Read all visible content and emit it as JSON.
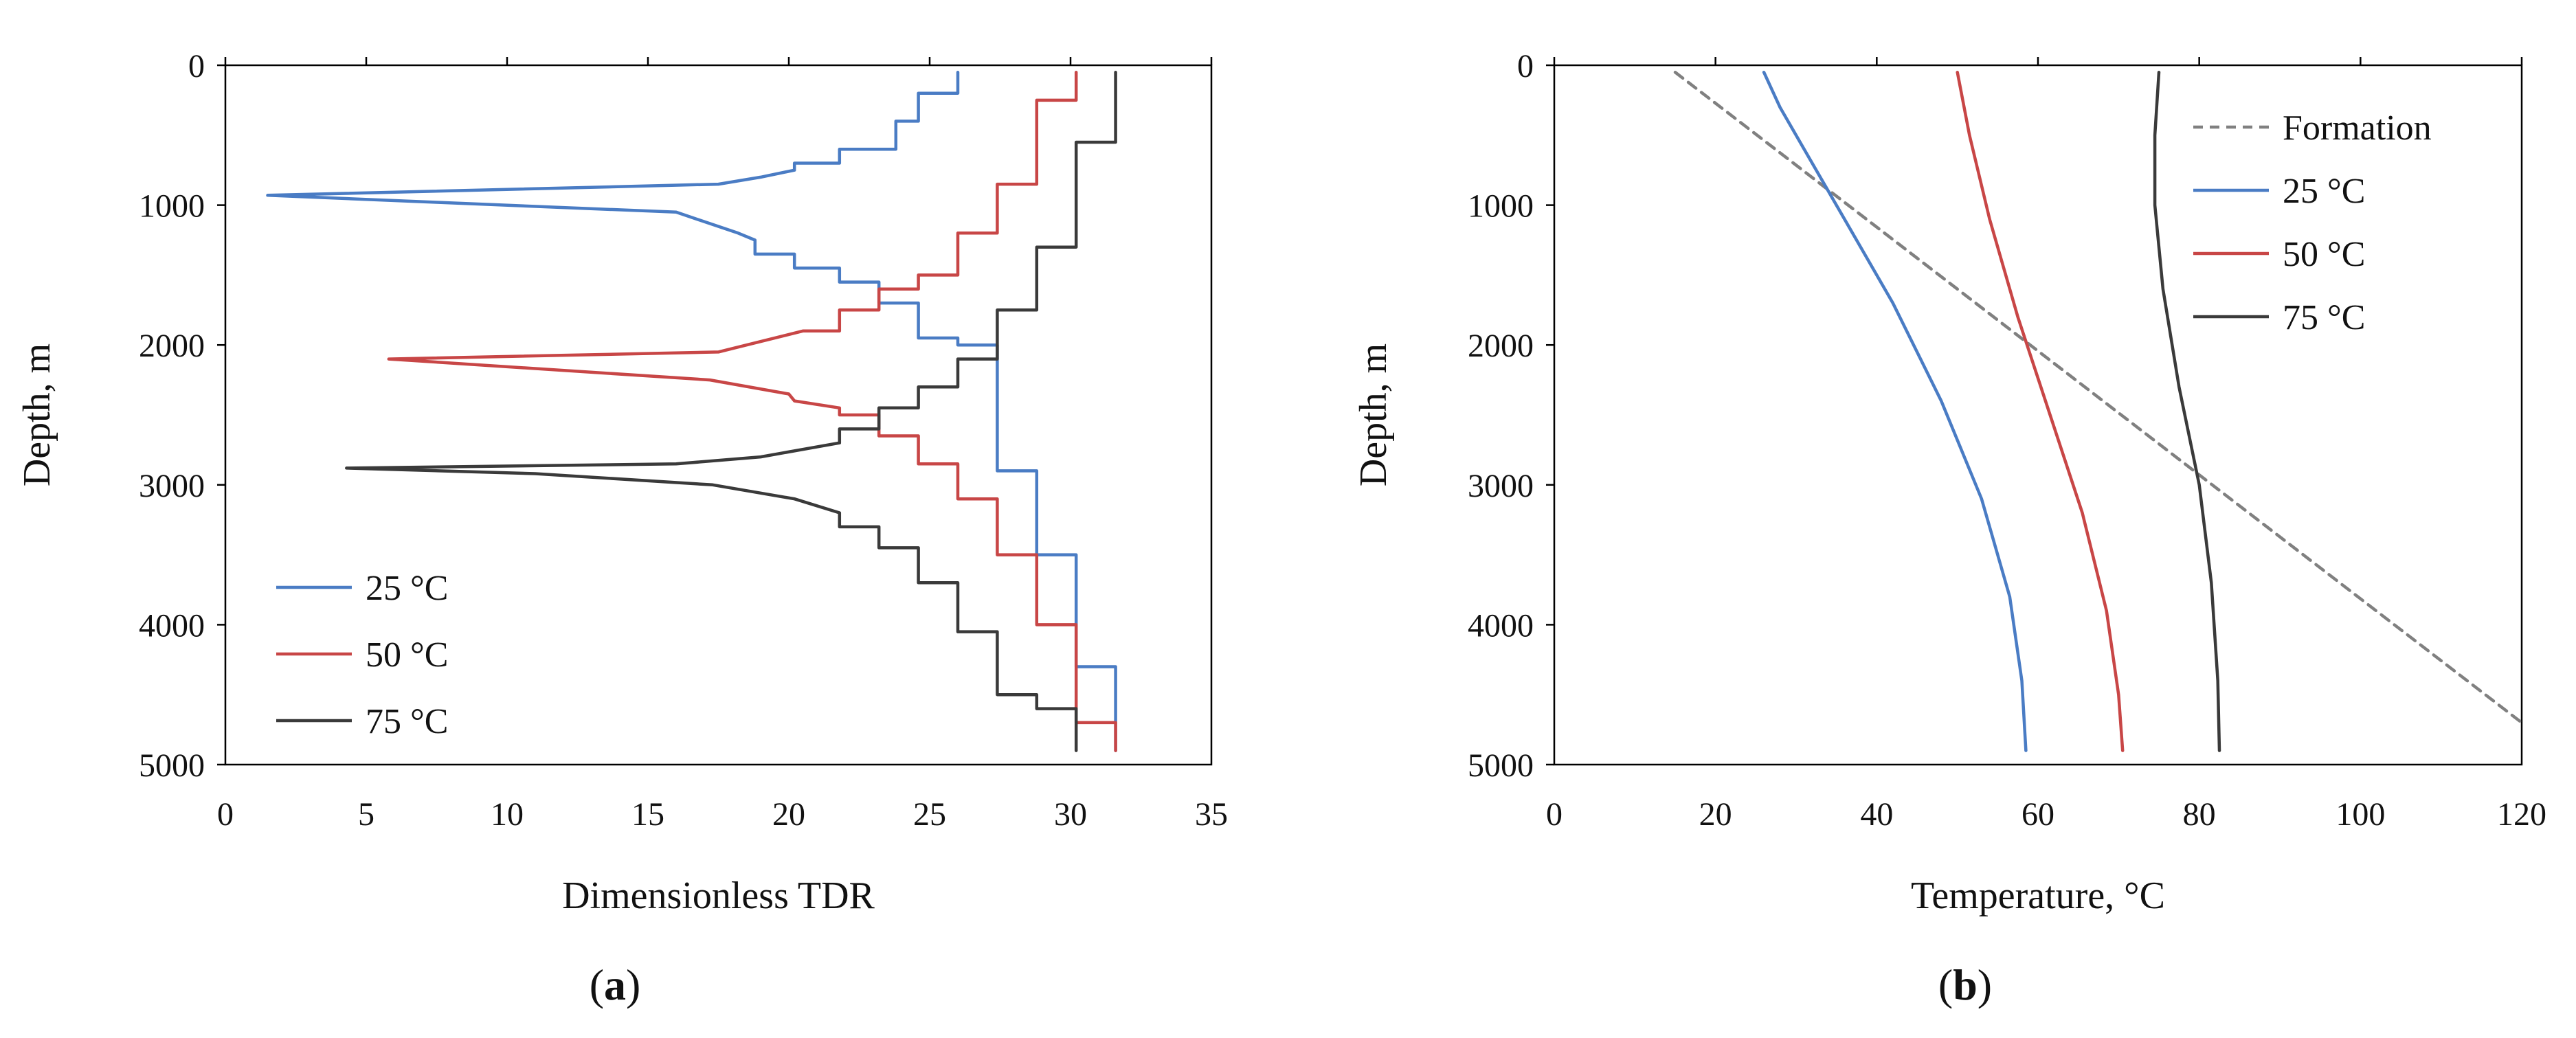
{
  "chart_data": [
    {
      "type": "line",
      "panel_label": {
        "open": "(",
        "letter": "a",
        "close": ")"
      },
      "xlabel": "Dimensionless TDR",
      "ylabel": "Depth, m",
      "xlim": [
        0,
        35
      ],
      "ylim": [
        0,
        5000
      ],
      "y_inverted": true,
      "x_axis_position": "top",
      "xticks": [
        0,
        5,
        10,
        15,
        20,
        25,
        30,
        35
      ],
      "yticks": [
        0,
        1000,
        2000,
        3000,
        4000,
        5000
      ],
      "legend_position": "bottom-left",
      "series": [
        {
          "name": "25  °C",
          "color": "#4a7cc4",
          "x": [
            26.0,
            26.0,
            24.6,
            24.6,
            23.8,
            23.8,
            21.8,
            21.8,
            20.2,
            20.2,
            19.0,
            17.5,
            1.5,
            7.5,
            16.0,
            18.2,
            18.8,
            18.8,
            20.2,
            20.2,
            21.8,
            21.8,
            23.2,
            23.2,
            24.6,
            24.6,
            26.0,
            26.0,
            27.4,
            27.4,
            28.8,
            28.8,
            30.2,
            30.2,
            31.6,
            31.6
          ],
          "y": [
            50,
            200,
            200,
            400,
            400,
            600,
            600,
            700,
            700,
            750,
            800,
            850,
            930,
            980,
            1050,
            1200,
            1250,
            1350,
            1350,
            1450,
            1450,
            1550,
            1550,
            1700,
            1700,
            1950,
            1950,
            2000,
            2000,
            2900,
            2900,
            3500,
            3500,
            4300,
            4300,
            4900
          ]
        },
        {
          "name": "50  °C",
          "color": "#c84646",
          "x": [
            30.2,
            30.2,
            28.8,
            28.8,
            27.4,
            27.4,
            26.0,
            26.0,
            24.6,
            24.6,
            23.2,
            23.2,
            21.8,
            21.8,
            20.5,
            17.5,
            5.8,
            17.2,
            20.0,
            20.2,
            21.8,
            21.8,
            23.2,
            23.2,
            24.6,
            24.6,
            26.0,
            26.0,
            27.4,
            27.4,
            28.8,
            28.8,
            30.2,
            30.2,
            31.6,
            31.6
          ],
          "y": [
            50,
            250,
            250,
            850,
            850,
            1200,
            1200,
            1500,
            1500,
            1600,
            1600,
            1750,
            1750,
            1900,
            1900,
            2050,
            2100,
            2250,
            2350,
            2400,
            2450,
            2500,
            2500,
            2650,
            2650,
            2850,
            2850,
            3100,
            3100,
            3500,
            3500,
            4000,
            4000,
            4700,
            4700,
            4900
          ]
        },
        {
          "name": "75  °C",
          "color": "#3a3a3a",
          "x": [
            31.6,
            31.6,
            30.2,
            30.2,
            28.8,
            28.8,
            27.4,
            27.4,
            26.0,
            26.0,
            24.6,
            24.6,
            23.2,
            23.2,
            21.8,
            21.8,
            19.0,
            16.0,
            4.3,
            11.0,
            17.3,
            20.2,
            21.8,
            21.8,
            23.2,
            23.2,
            24.6,
            24.6,
            26.0,
            26.0,
            27.4,
            27.4,
            28.8,
            28.8,
            30.2,
            30.2
          ],
          "y": [
            50,
            550,
            550,
            1300,
            1300,
            1750,
            1750,
            2100,
            2100,
            2300,
            2300,
            2450,
            2450,
            2600,
            2600,
            2700,
            2800,
            2850,
            2880,
            2920,
            3000,
            3100,
            3200,
            3300,
            3300,
            3450,
            3450,
            3700,
            3700,
            4050,
            4050,
            4500,
            4500,
            4600,
            4600,
            4900
          ]
        }
      ]
    },
    {
      "type": "line",
      "panel_label": {
        "open": "(",
        "letter": "b",
        "close": ")"
      },
      "xlabel": "Temperature,  °C",
      "ylabel": "Depth, m",
      "xlim": [
        0,
        120
      ],
      "ylim": [
        0,
        5000
      ],
      "y_inverted": true,
      "x_axis_position": "top",
      "xticks": [
        0,
        20,
        40,
        60,
        80,
        100,
        120
      ],
      "yticks": [
        0,
        1000,
        2000,
        3000,
        4000,
        5000
      ],
      "legend_position": "top-right",
      "series": [
        {
          "name": "Formation",
          "color": "#808080",
          "dashed": true,
          "x": [
            15,
            120
          ],
          "y": [
            50,
            4700
          ]
        },
        {
          "name": "25 °C",
          "color": "#4a7cc4",
          "x": [
            26.0,
            28.0,
            31.0,
            36.0,
            42.0,
            48.0,
            53.0,
            56.5,
            58.0,
            58.5
          ],
          "y": [
            50,
            300,
            600,
            1100,
            1700,
            2400,
            3100,
            3800,
            4400,
            4900
          ]
        },
        {
          "name": "50 °C",
          "color": "#c84646",
          "x": [
            50.0,
            51.5,
            54.0,
            57.5,
            61.5,
            65.5,
            68.5,
            70.0,
            70.5
          ],
          "y": [
            50,
            500,
            1100,
            1800,
            2500,
            3200,
            3900,
            4500,
            4900
          ]
        },
        {
          "name": "75 °C",
          "color": "#3a3a3a",
          "x": [
            75.0,
            74.5,
            74.5,
            75.5,
            77.5,
            80.0,
            81.5,
            82.3,
            82.5
          ],
          "y": [
            50,
            500,
            1000,
            1600,
            2300,
            3000,
            3700,
            4400,
            4900
          ]
        }
      ]
    }
  ]
}
